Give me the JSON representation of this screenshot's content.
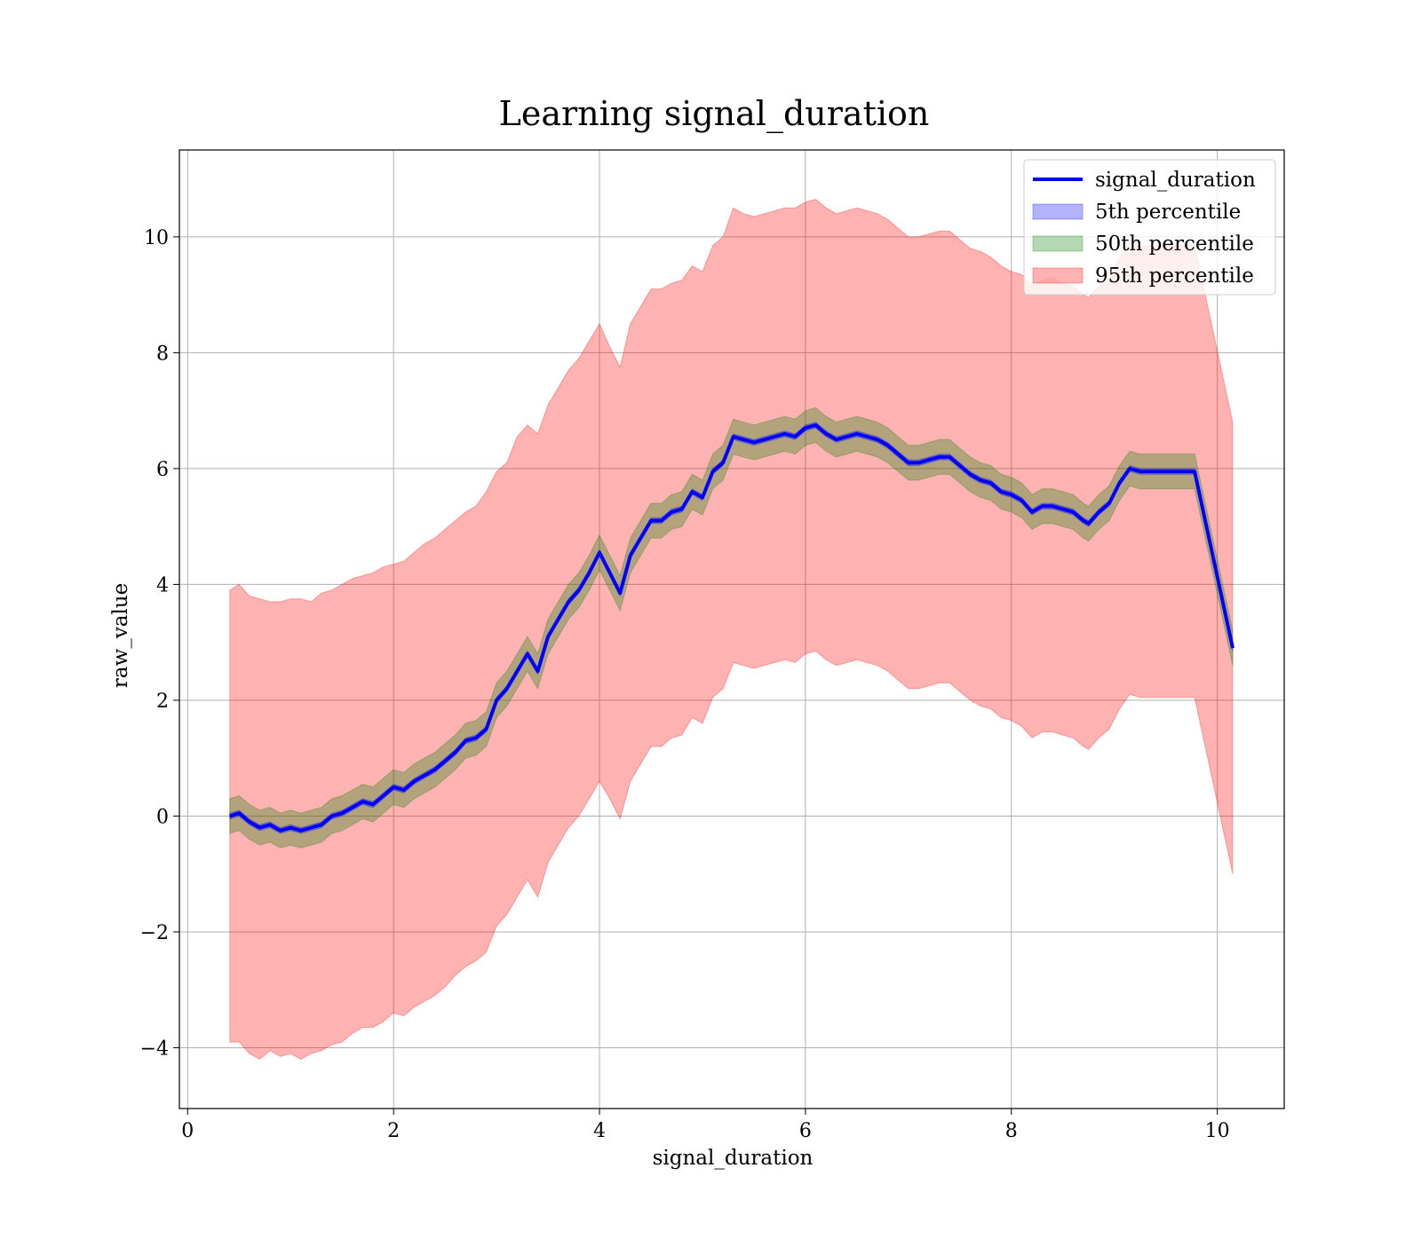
{
  "chart_data": {
    "type": "line",
    "title": "Learning signal_duration",
    "xlabel": "signal_duration",
    "ylabel": "raw_value",
    "xlim": [
      -0.08,
      10.65
    ],
    "ylim": [
      -5.05,
      11.5
    ],
    "xticks": [
      0,
      2,
      4,
      6,
      8,
      10
    ],
    "xtick_labels": [
      "0",
      "2",
      "4",
      "6",
      "8",
      "10"
    ],
    "yticks": [
      -4,
      -2,
      0,
      2,
      4,
      6,
      8,
      10
    ],
    "ytick_labels": [
      "−4",
      "−2",
      "0",
      "2",
      "4",
      "6",
      "8",
      "10"
    ],
    "grid": true,
    "legend_position": "top-right",
    "legend": [
      {
        "label": "signal_duration",
        "kind": "line",
        "color": "#0000ff"
      },
      {
        "label": "5th percentile",
        "kind": "band",
        "color": "#0000ff"
      },
      {
        "label": "50th percentile",
        "kind": "band",
        "color": "#008000"
      },
      {
        "label": "95th percentile",
        "kind": "band",
        "color": "#ff0000"
      }
    ],
    "series": [
      {
        "name": "signal_duration",
        "color": "#0000ff",
        "x": [
          0.41,
          0.5,
          0.6,
          0.7,
          0.8,
          0.9,
          1.0,
          1.1,
          1.2,
          1.3,
          1.4,
          1.5,
          1.6,
          1.7,
          1.8,
          1.9,
          2.0,
          2.1,
          2.2,
          2.3,
          2.4,
          2.5,
          2.6,
          2.7,
          2.8,
          2.9,
          3.0,
          3.1,
          3.2,
          3.3,
          3.4,
          3.5,
          3.6,
          3.7,
          3.8,
          3.9,
          4.0,
          4.1,
          4.2,
          4.3,
          4.4,
          4.5,
          4.6,
          4.7,
          4.8,
          4.9,
          5.0,
          5.1,
          5.2,
          5.3,
          5.4,
          5.5,
          5.6,
          5.7,
          5.8,
          5.9,
          6.0,
          6.1,
          6.2,
          6.3,
          6.4,
          6.5,
          6.6,
          6.7,
          6.8,
          6.9,
          7.0,
          7.1,
          7.2,
          7.3,
          7.4,
          7.5,
          7.6,
          7.7,
          7.8,
          7.9,
          8.0,
          8.1,
          8.2,
          8.3,
          8.4,
          8.5,
          8.6,
          8.7,
          8.75,
          8.85,
          8.95,
          9.05,
          9.15,
          9.25,
          9.35,
          9.5,
          9.65,
          9.78,
          10.15
        ],
        "values": [
          0.0,
          0.05,
          -0.1,
          -0.2,
          -0.15,
          -0.25,
          -0.2,
          -0.25,
          -0.2,
          -0.15,
          0.0,
          0.05,
          0.15,
          0.25,
          0.2,
          0.35,
          0.5,
          0.45,
          0.6,
          0.7,
          0.8,
          0.95,
          1.1,
          1.3,
          1.35,
          1.5,
          2.0,
          2.2,
          2.5,
          2.8,
          2.5,
          3.1,
          3.4,
          3.7,
          3.9,
          4.2,
          4.55,
          4.2,
          3.85,
          4.5,
          4.8,
          5.1,
          5.1,
          5.25,
          5.3,
          5.6,
          5.5,
          5.95,
          6.1,
          6.55,
          6.5,
          6.45,
          6.5,
          6.55,
          6.6,
          6.55,
          6.7,
          6.75,
          6.6,
          6.5,
          6.55,
          6.6,
          6.55,
          6.5,
          6.4,
          6.25,
          6.1,
          6.1,
          6.15,
          6.2,
          6.2,
          6.05,
          5.9,
          5.8,
          5.75,
          5.6,
          5.55,
          5.45,
          5.25,
          5.35,
          5.35,
          5.3,
          5.25,
          5.1,
          5.05,
          5.25,
          5.4,
          5.75,
          6.0,
          5.95,
          5.95,
          5.95,
          5.95,
          5.95,
          2.9
        ]
      }
    ],
    "bands": [
      {
        "name": "95th percentile",
        "color": "#ff0000",
        "x": [
          0.41,
          0.5,
          0.6,
          0.7,
          0.8,
          0.9,
          1.0,
          1.1,
          1.2,
          1.3,
          1.4,
          1.5,
          1.6,
          1.7,
          1.8,
          1.9,
          2.0,
          2.1,
          2.2,
          2.3,
          2.4,
          2.5,
          2.6,
          2.7,
          2.8,
          2.9,
          3.0,
          3.1,
          3.2,
          3.3,
          3.4,
          3.5,
          3.6,
          3.7,
          3.8,
          3.9,
          4.0,
          4.1,
          4.2,
          4.3,
          4.4,
          4.5,
          4.6,
          4.7,
          4.8,
          4.9,
          5.0,
          5.1,
          5.2,
          5.3,
          5.4,
          5.5,
          5.6,
          5.7,
          5.8,
          5.9,
          6.0,
          6.1,
          6.2,
          6.3,
          6.4,
          6.5,
          6.6,
          6.7,
          6.8,
          6.9,
          7.0,
          7.1,
          7.2,
          7.3,
          7.4,
          7.5,
          7.6,
          7.7,
          7.8,
          7.9,
          8.0,
          8.1,
          8.2,
          8.3,
          8.4,
          8.5,
          8.6,
          8.7,
          8.75,
          8.85,
          8.95,
          9.05,
          9.15,
          9.25,
          9.35,
          9.5,
          9.65,
          9.78,
          10.15
        ],
        "upper": [
          3.9,
          4.0,
          3.8,
          3.75,
          3.7,
          3.7,
          3.75,
          3.75,
          3.7,
          3.85,
          3.9,
          4.0,
          4.1,
          4.15,
          4.2,
          4.3,
          4.35,
          4.4,
          4.55,
          4.7,
          4.8,
          4.95,
          5.1,
          5.25,
          5.35,
          5.6,
          5.95,
          6.1,
          6.55,
          6.75,
          6.6,
          7.1,
          7.4,
          7.7,
          7.9,
          8.2,
          8.5,
          8.1,
          7.75,
          8.5,
          8.8,
          9.1,
          9.1,
          9.2,
          9.25,
          9.5,
          9.4,
          9.85,
          10.0,
          10.5,
          10.4,
          10.35,
          10.4,
          10.45,
          10.5,
          10.5,
          10.6,
          10.65,
          10.5,
          10.4,
          10.45,
          10.5,
          10.45,
          10.4,
          10.3,
          10.15,
          10.0,
          10.0,
          10.05,
          10.1,
          10.1,
          9.95,
          9.8,
          9.75,
          9.65,
          9.5,
          9.4,
          9.35,
          9.15,
          9.25,
          9.3,
          9.2,
          9.15,
          9.0,
          8.95,
          9.15,
          9.3,
          9.65,
          9.9,
          9.85,
          9.85,
          9.85,
          9.85,
          9.85,
          6.8
        ],
        "lower": [
          -3.9,
          -3.9,
          -4.1,
          -4.2,
          -4.05,
          -4.15,
          -4.1,
          -4.2,
          -4.1,
          -4.05,
          -3.95,
          -3.9,
          -3.75,
          -3.65,
          -3.65,
          -3.55,
          -3.4,
          -3.45,
          -3.3,
          -3.2,
          -3.1,
          -2.95,
          -2.75,
          -2.6,
          -2.5,
          -2.35,
          -1.9,
          -1.7,
          -1.4,
          -1.1,
          -1.4,
          -0.8,
          -0.5,
          -0.2,
          0.0,
          0.3,
          0.6,
          0.3,
          -0.05,
          0.6,
          0.9,
          1.2,
          1.2,
          1.35,
          1.4,
          1.7,
          1.6,
          2.05,
          2.2,
          2.65,
          2.6,
          2.55,
          2.6,
          2.65,
          2.7,
          2.65,
          2.8,
          2.85,
          2.7,
          2.6,
          2.65,
          2.7,
          2.65,
          2.6,
          2.5,
          2.35,
          2.2,
          2.2,
          2.25,
          2.3,
          2.3,
          2.15,
          2.0,
          1.9,
          1.85,
          1.7,
          1.65,
          1.55,
          1.35,
          1.45,
          1.45,
          1.4,
          1.35,
          1.2,
          1.15,
          1.35,
          1.5,
          1.85,
          2.1,
          2.05,
          2.05,
          2.05,
          2.05,
          2.05,
          -1.0
        ]
      },
      {
        "name": "50th percentile",
        "color": "#008000",
        "x": [
          0.41,
          0.5,
          0.6,
          0.7,
          0.8,
          0.9,
          1.0,
          1.1,
          1.2,
          1.3,
          1.4,
          1.5,
          1.6,
          1.7,
          1.8,
          1.9,
          2.0,
          2.1,
          2.2,
          2.3,
          2.4,
          2.5,
          2.6,
          2.7,
          2.8,
          2.9,
          3.0,
          3.1,
          3.2,
          3.3,
          3.4,
          3.5,
          3.6,
          3.7,
          3.8,
          3.9,
          4.0,
          4.1,
          4.2,
          4.3,
          4.4,
          4.5,
          4.6,
          4.7,
          4.8,
          4.9,
          5.0,
          5.1,
          5.2,
          5.3,
          5.4,
          5.5,
          5.6,
          5.7,
          5.8,
          5.9,
          6.0,
          6.1,
          6.2,
          6.3,
          6.4,
          6.5,
          6.6,
          6.7,
          6.8,
          6.9,
          7.0,
          7.1,
          7.2,
          7.3,
          7.4,
          7.5,
          7.6,
          7.7,
          7.8,
          7.9,
          8.0,
          8.1,
          8.2,
          8.3,
          8.4,
          8.5,
          8.6,
          8.7,
          8.75,
          8.85,
          8.95,
          9.05,
          9.15,
          9.25,
          9.35,
          9.5,
          9.65,
          9.78,
          10.15
        ],
        "upper": [
          0.3,
          0.35,
          0.2,
          0.1,
          0.15,
          0.05,
          0.1,
          0.05,
          0.1,
          0.15,
          0.3,
          0.35,
          0.45,
          0.55,
          0.5,
          0.65,
          0.8,
          0.75,
          0.9,
          1.0,
          1.1,
          1.25,
          1.4,
          1.6,
          1.65,
          1.8,
          2.3,
          2.5,
          2.8,
          3.1,
          2.8,
          3.4,
          3.7,
          4.0,
          4.2,
          4.5,
          4.85,
          4.5,
          4.15,
          4.8,
          5.1,
          5.4,
          5.4,
          5.55,
          5.6,
          5.9,
          5.8,
          6.25,
          6.4,
          6.85,
          6.8,
          6.75,
          6.8,
          6.85,
          6.9,
          6.85,
          7.0,
          7.05,
          6.9,
          6.8,
          6.85,
          6.9,
          6.85,
          6.8,
          6.7,
          6.55,
          6.4,
          6.4,
          6.45,
          6.5,
          6.5,
          6.35,
          6.2,
          6.1,
          6.05,
          5.9,
          5.85,
          5.75,
          5.55,
          5.65,
          5.65,
          5.6,
          5.55,
          5.4,
          5.35,
          5.55,
          5.7,
          6.05,
          6.3,
          6.25,
          6.25,
          6.25,
          6.25,
          6.25,
          3.2
        ],
        "lower": [
          -0.3,
          -0.25,
          -0.4,
          -0.5,
          -0.45,
          -0.55,
          -0.5,
          -0.55,
          -0.5,
          -0.45,
          -0.3,
          -0.25,
          -0.15,
          -0.05,
          -0.1,
          0.05,
          0.2,
          0.15,
          0.3,
          0.4,
          0.5,
          0.65,
          0.8,
          1.0,
          1.05,
          1.2,
          1.7,
          1.9,
          2.2,
          2.5,
          2.2,
          2.8,
          3.1,
          3.4,
          3.6,
          3.9,
          4.25,
          3.9,
          3.55,
          4.2,
          4.5,
          4.8,
          4.8,
          4.95,
          5.0,
          5.3,
          5.2,
          5.65,
          5.8,
          6.25,
          6.2,
          6.15,
          6.2,
          6.25,
          6.3,
          6.25,
          6.4,
          6.45,
          6.3,
          6.2,
          6.25,
          6.3,
          6.25,
          6.2,
          6.1,
          5.95,
          5.8,
          5.8,
          5.85,
          5.9,
          5.9,
          5.75,
          5.6,
          5.5,
          5.45,
          5.3,
          5.25,
          5.15,
          4.95,
          5.05,
          5.05,
          5.0,
          4.95,
          4.8,
          4.75,
          4.95,
          5.1,
          5.45,
          5.7,
          5.65,
          5.65,
          5.65,
          5.65,
          5.65,
          2.6
        ]
      },
      {
        "name": "5th percentile",
        "color": "#0000ff",
        "x": [
          0.41,
          0.5,
          0.6,
          0.7,
          0.8,
          0.9,
          1.0,
          1.1,
          1.2,
          1.3,
          1.4,
          1.5,
          1.6,
          1.7,
          1.8,
          1.9,
          2.0,
          2.1,
          2.2,
          2.3,
          2.4,
          2.5,
          2.6,
          2.7,
          2.8,
          2.9,
          3.0,
          3.1,
          3.2,
          3.3,
          3.4,
          3.5,
          3.6,
          3.7,
          3.8,
          3.9,
          4.0,
          4.1,
          4.2,
          4.3,
          4.4,
          4.5,
          4.6,
          4.7,
          4.8,
          4.9,
          5.0,
          5.1,
          5.2,
          5.3,
          5.4,
          5.5,
          5.6,
          5.7,
          5.8,
          5.9,
          6.0,
          6.1,
          6.2,
          6.3,
          6.4,
          6.5,
          6.6,
          6.7,
          6.8,
          6.9,
          7.0,
          7.1,
          7.2,
          7.3,
          7.4,
          7.5,
          7.6,
          7.7,
          7.8,
          7.9,
          8.0,
          8.1,
          8.2,
          8.3,
          8.4,
          8.5,
          8.6,
          8.7,
          8.75,
          8.85,
          8.95,
          9.05,
          9.15,
          9.25,
          9.35,
          9.5,
          9.65,
          9.78,
          10.15
        ],
        "upper": [
          0.05,
          0.1,
          -0.05,
          -0.15,
          -0.1,
          -0.2,
          -0.15,
          -0.2,
          -0.15,
          -0.1,
          0.05,
          0.1,
          0.2,
          0.3,
          0.25,
          0.4,
          0.55,
          0.5,
          0.65,
          0.75,
          0.85,
          1.0,
          1.15,
          1.35,
          1.4,
          1.55,
          2.05,
          2.25,
          2.55,
          2.85,
          2.55,
          3.15,
          3.45,
          3.75,
          3.95,
          4.25,
          4.6,
          4.25,
          3.9,
          4.55,
          4.85,
          5.15,
          5.15,
          5.3,
          5.35,
          5.65,
          5.55,
          6.0,
          6.15,
          6.6,
          6.55,
          6.5,
          6.55,
          6.6,
          6.65,
          6.6,
          6.75,
          6.8,
          6.65,
          6.55,
          6.6,
          6.65,
          6.6,
          6.55,
          6.45,
          6.3,
          6.15,
          6.15,
          6.2,
          6.25,
          6.25,
          6.1,
          5.95,
          5.85,
          5.8,
          5.65,
          5.6,
          5.5,
          5.3,
          5.4,
          5.4,
          5.35,
          5.3,
          5.15,
          5.1,
          5.3,
          5.45,
          5.8,
          6.05,
          6.0,
          6.0,
          6.0,
          6.0,
          6.0,
          2.95
        ],
        "lower": [
          -0.05,
          0.0,
          -0.15,
          -0.25,
          -0.2,
          -0.3,
          -0.25,
          -0.3,
          -0.25,
          -0.2,
          -0.05,
          0.0,
          0.1,
          0.2,
          0.15,
          0.3,
          0.45,
          0.4,
          0.55,
          0.65,
          0.75,
          0.9,
          1.05,
          1.25,
          1.3,
          1.45,
          1.95,
          2.15,
          2.45,
          2.75,
          2.45,
          3.05,
          3.35,
          3.65,
          3.85,
          4.15,
          4.5,
          4.15,
          3.8,
          4.45,
          4.75,
          5.05,
          5.05,
          5.2,
          5.25,
          5.55,
          5.45,
          5.9,
          6.05,
          6.5,
          6.45,
          6.4,
          6.45,
          6.5,
          6.55,
          6.5,
          6.65,
          6.7,
          6.55,
          6.45,
          6.5,
          6.55,
          6.5,
          6.45,
          6.35,
          6.2,
          6.05,
          6.05,
          6.1,
          6.15,
          6.15,
          6.0,
          5.85,
          5.75,
          5.7,
          5.55,
          5.5,
          5.4,
          5.2,
          5.3,
          5.3,
          5.25,
          5.2,
          5.05,
          5.0,
          5.2,
          5.35,
          5.7,
          5.95,
          5.9,
          5.9,
          5.9,
          5.9,
          5.9,
          2.85
        ]
      }
    ]
  }
}
